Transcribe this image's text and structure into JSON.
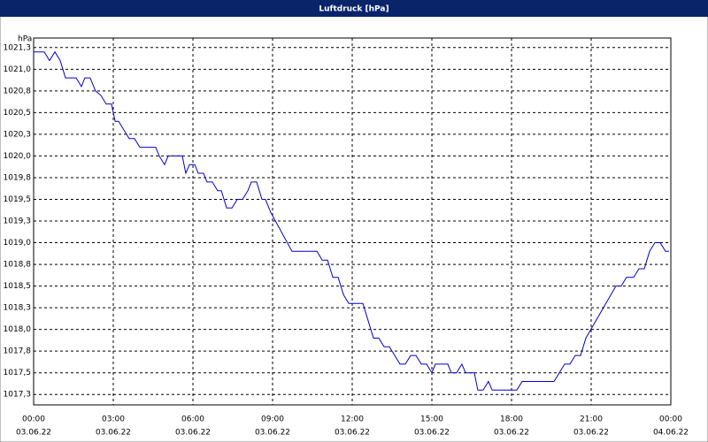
{
  "chart_data": {
    "type": "line",
    "title": "Luftdruck [hPa]",
    "y_label": "hPa",
    "xlim": [
      0,
      24
    ],
    "xticks": [
      {
        "value": 0,
        "label": "00:00",
        "date": "03.06.22"
      },
      {
        "value": 3,
        "label": "03:00",
        "date": "03.06.22"
      },
      {
        "value": 6,
        "label": "06:00",
        "date": "03.06.22"
      },
      {
        "value": 9,
        "label": "09:00",
        "date": "03.06.22"
      },
      {
        "value": 12,
        "label": "12:00",
        "date": "03.06.22"
      },
      {
        "value": 15,
        "label": "15:00",
        "date": "03.06.22"
      },
      {
        "value": 18,
        "label": "18:00",
        "date": "03.06.22"
      },
      {
        "value": 21,
        "label": "21:00",
        "date": "03.06.22"
      },
      {
        "value": 24,
        "label": "00:00",
        "date": "04.06.22"
      }
    ],
    "ylim": [
      1017.13,
      1021.36
    ],
    "yticks": [
      {
        "value": 1017.25,
        "label": "1017,3"
      },
      {
        "value": 1017.5,
        "label": "1017,5"
      },
      {
        "value": 1017.75,
        "label": "1017,8"
      },
      {
        "value": 1018.0,
        "label": "1018,0"
      },
      {
        "value": 1018.25,
        "label": "1018,3"
      },
      {
        "value": 1018.5,
        "label": "1018,5"
      },
      {
        "value": 1018.75,
        "label": "1018,8"
      },
      {
        "value": 1019.0,
        "label": "1019,0"
      },
      {
        "value": 1019.25,
        "label": "1019,3"
      },
      {
        "value": 1019.5,
        "label": "1019,5"
      },
      {
        "value": 1019.75,
        "label": "1019,8"
      },
      {
        "value": 1020.0,
        "label": "1020,0"
      },
      {
        "value": 1020.25,
        "label": "1020,3"
      },
      {
        "value": 1020.5,
        "label": "1020,5"
      },
      {
        "value": 1020.75,
        "label": "1020,8"
      },
      {
        "value": 1021.0,
        "label": "1021,0"
      },
      {
        "value": 1021.25,
        "label": "1021,3"
      }
    ],
    "grid": true,
    "color": "#0000cc",
    "x": [
      0,
      0.4,
      0.6,
      0.8,
      1.0,
      1.2,
      1.6,
      1.8,
      1.93,
      2.13,
      2.33,
      2.53,
      2.73,
      2.93,
      3.07,
      3.2,
      3.4,
      3.6,
      3.8,
      4.0,
      4.6,
      4.73,
      4.93,
      5.07,
      5.6,
      5.73,
      5.87,
      6.07,
      6.2,
      6.4,
      6.53,
      6.73,
      6.93,
      7.07,
      7.27,
      7.47,
      7.67,
      7.87,
      8.07,
      8.2,
      8.4,
      8.6,
      8.73,
      8.93,
      9.73,
      10.67,
      10.87,
      11.07,
      11.27,
      11.47,
      11.67,
      11.87,
      12.4,
      12.6,
      12.8,
      13.0,
      13.2,
      13.4,
      13.6,
      13.8,
      14.0,
      14.2,
      14.4,
      14.6,
      14.8,
      15.0,
      15.13,
      15.6,
      15.73,
      15.93,
      16.13,
      16.27,
      16.6,
      16.73,
      16.93,
      17.13,
      17.27,
      18.2,
      18.4,
      19.6,
      19.8,
      20.0,
      20.2,
      20.4,
      20.6,
      20.8,
      21.93,
      22.13,
      22.33,
      22.6,
      22.8,
      23.0,
      23.2,
      23.4,
      23.6,
      23.8,
      23.93
    ],
    "values": [
      1021.2,
      1021.2,
      1021.1,
      1021.2,
      1021.1,
      1020.9,
      1020.9,
      1020.8,
      1020.9,
      1020.9,
      1020.75,
      1020.7,
      1020.6,
      1020.6,
      1020.4,
      1020.4,
      1020.3,
      1020.2,
      1020.2,
      1020.1,
      1020.1,
      1020.0,
      1019.9,
      1020.0,
      1020.0,
      1019.8,
      1019.9,
      1019.9,
      1019.8,
      1019.8,
      1019.7,
      1019.7,
      1019.6,
      1019.6,
      1019.4,
      1019.4,
      1019.5,
      1019.5,
      1019.6,
      1019.7,
      1019.7,
      1019.5,
      1019.5,
      1019.35,
      1018.9,
      1018.9,
      1018.8,
      1018.8,
      1018.6,
      1018.6,
      1018.4,
      1018.3,
      1018.3,
      1018.1,
      1017.9,
      1017.9,
      1017.8,
      1017.8,
      1017.7,
      1017.6,
      1017.6,
      1017.7,
      1017.7,
      1017.6,
      1017.6,
      1017.5,
      1017.6,
      1017.6,
      1017.5,
      1017.5,
      1017.6,
      1017.5,
      1017.5,
      1017.3,
      1017.3,
      1017.4,
      1017.3,
      1017.3,
      1017.4,
      1017.4,
      1017.5,
      1017.6,
      1017.6,
      1017.7,
      1017.7,
      1017.9,
      1018.5,
      1018.5,
      1018.6,
      1018.6,
      1018.7,
      1018.7,
      1018.9,
      1019.0,
      1019.0,
      1018.9,
      1018.9
    ]
  }
}
